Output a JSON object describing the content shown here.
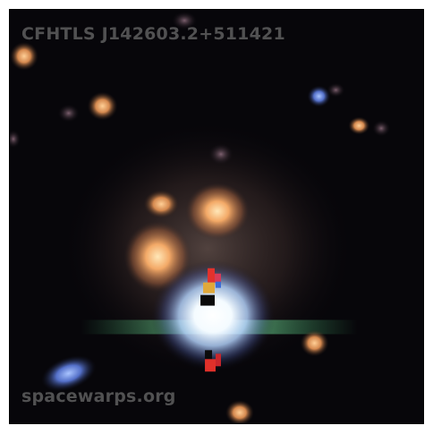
{
  "image": {
    "title": "CFHTLS J142603.2+511421",
    "watermark": "spacewarps.org"
  }
}
